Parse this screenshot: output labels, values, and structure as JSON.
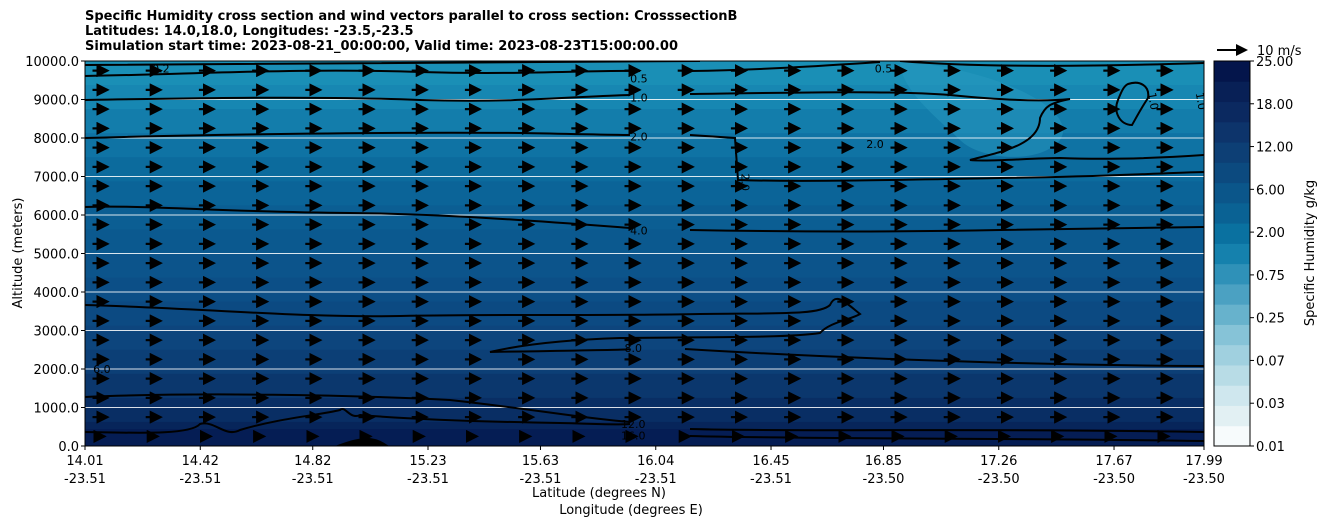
{
  "title_lines": [
    "Specific Humidity cross section and wind vectors parallel to cross section: CrosssectionB",
    "Latitudes: 14.0,18.0, Longitudes: -23.5,-23.5",
    "Simulation start time: 2023-08-21_00:00:00, Valid time: 2023-08-23T15:00:00.00"
  ],
  "chart_data": {
    "type": "heatmap",
    "subtype": "filled contour cross-section with wind quiver",
    "ylabel": "Altitude (meters)",
    "xlabel_lines": [
      "Latitude (degrees N)",
      "Longitude (degrees E)"
    ],
    "ylim": [
      0,
      10000
    ],
    "y_ticks": [
      "0.0",
      "1000.0",
      "2000.0",
      "3000.0",
      "4000.0",
      "5000.0",
      "6000.0",
      "7000.0",
      "8000.0",
      "9000.0",
      "10000.0"
    ],
    "x_ticks": [
      {
        "lat": "14.01",
        "lon": "-23.51"
      },
      {
        "lat": "14.42",
        "lon": "-23.51"
      },
      {
        "lat": "14.82",
        "lon": "-23.51"
      },
      {
        "lat": "15.23",
        "lon": "-23.51"
      },
      {
        "lat": "15.63",
        "lon": "-23.51"
      },
      {
        "lat": "16.04",
        "lon": "-23.51"
      },
      {
        "lat": "16.45",
        "lon": "-23.51"
      },
      {
        "lat": "16.85",
        "lon": "-23.50"
      },
      {
        "lat": "17.26",
        "lon": "-23.50"
      },
      {
        "lat": "17.67",
        "lon": "-23.50"
      },
      {
        "lat": "17.99",
        "lon": "-23.50"
      }
    ],
    "grid": "horizontal lines at y ticks",
    "colorbar": {
      "label": "Specific Humidity g/kg",
      "tick_labels": [
        "0.01",
        "0.03",
        "0.07",
        "0.25",
        "0.75",
        "2.00",
        "6.00",
        "12.00",
        "18.00",
        "25.00"
      ],
      "colors": [
        "#f7fbfc",
        "#e2f0f3",
        "#cfe7ee",
        "#b8dce6",
        "#a0d0df",
        "#86c3d7",
        "#67b2cc",
        "#4ba1c2",
        "#2f91b8",
        "#1581ad",
        "#0a71a0",
        "#0a6294",
        "#0b568a",
        "#0c4a7f",
        "#0d3f75",
        "#0d346b",
        "#0b2960",
        "#082056",
        "#04154b"
      ]
    },
    "quiver_key": {
      "label": "10 m/s"
    },
    "contour_labels": [
      {
        "text": "0.2",
        "lat": 14.28,
        "alt": 9800
      },
      {
        "text": "0.5",
        "lat": 15.98,
        "alt": 9550
      },
      {
        "text": "0.5",
        "lat": 16.85,
        "alt": 9800
      },
      {
        "text": "1.0",
        "lat": 15.98,
        "alt": 9050
      },
      {
        "text": "1.0",
        "lat": 17.81,
        "alt": 8960
      },
      {
        "text": "1.0",
        "lat": 17.98,
        "alt": 8960
      },
      {
        "text": "2.0",
        "lat": 15.98,
        "alt": 8040
      },
      {
        "text": "2.0",
        "lat": 16.82,
        "alt": 7850
      },
      {
        "text": "2.0",
        "lat": 16.36,
        "alt": 6850
      },
      {
        "text": "4.0",
        "lat": 15.98,
        "alt": 5600
      },
      {
        "text": "8.0",
        "lat": 15.96,
        "alt": 2550
      },
      {
        "text": "12.0",
        "lat": 15.96,
        "alt": 570
      },
      {
        "text": "16.0",
        "lat": 15.96,
        "alt": 270
      },
      {
        "text": "6.0",
        "lat": 14.07,
        "alt": 2000
      }
    ]
  },
  "colors": {
    "arrow": "#000000",
    "contour": "#000000",
    "terrain": "#000000",
    "grid": "#ffffff"
  }
}
